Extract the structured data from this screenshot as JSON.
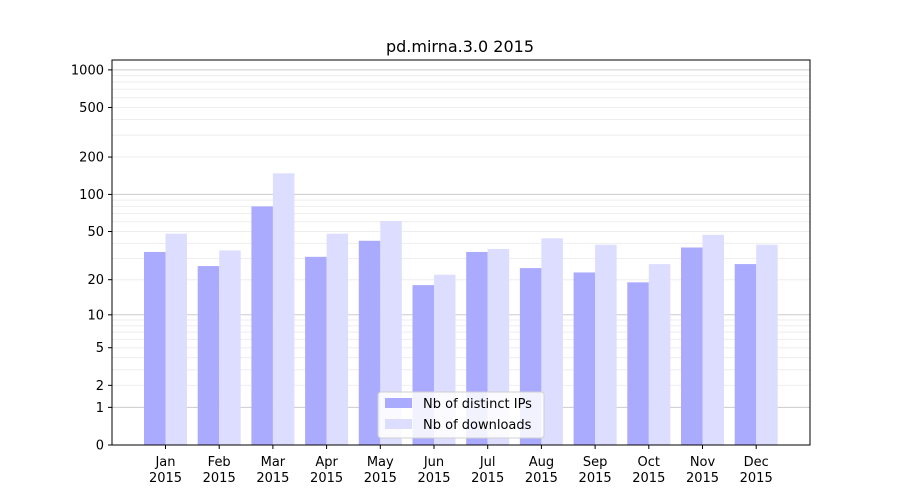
{
  "chart_data": {
    "type": "bar",
    "title": "pd.mirna.3.0 2015",
    "xlabel": "",
    "ylabel": "",
    "y_scale": "log(1+y)",
    "ylim": [
      0,
      1200
    ],
    "y_ticks": [
      0,
      1,
      2,
      5,
      10,
      20,
      50,
      100,
      200,
      500,
      1000
    ],
    "grid": true,
    "legend_position": "bottom-center",
    "categories": [
      [
        "Jan",
        "2015"
      ],
      [
        "Feb",
        "2015"
      ],
      [
        "Mar",
        "2015"
      ],
      [
        "Apr",
        "2015"
      ],
      [
        "May",
        "2015"
      ],
      [
        "Jun",
        "2015"
      ],
      [
        "Jul",
        "2015"
      ],
      [
        "Aug",
        "2015"
      ],
      [
        "Sep",
        "2015"
      ],
      [
        "Oct",
        "2015"
      ],
      [
        "Nov",
        "2015"
      ],
      [
        "Dec",
        "2015"
      ]
    ],
    "series": [
      {
        "name": "Nb of distinct IPs",
        "color": "#aaaaff",
        "values": [
          34,
          26,
          80,
          31,
          42,
          18,
          34,
          25,
          23,
          19,
          37,
          27
        ]
      },
      {
        "name": "Nb of downloads",
        "color": "#ddddff",
        "values": [
          48,
          35,
          148,
          48,
          61,
          22,
          36,
          44,
          39,
          27,
          47,
          39
        ]
      }
    ]
  }
}
